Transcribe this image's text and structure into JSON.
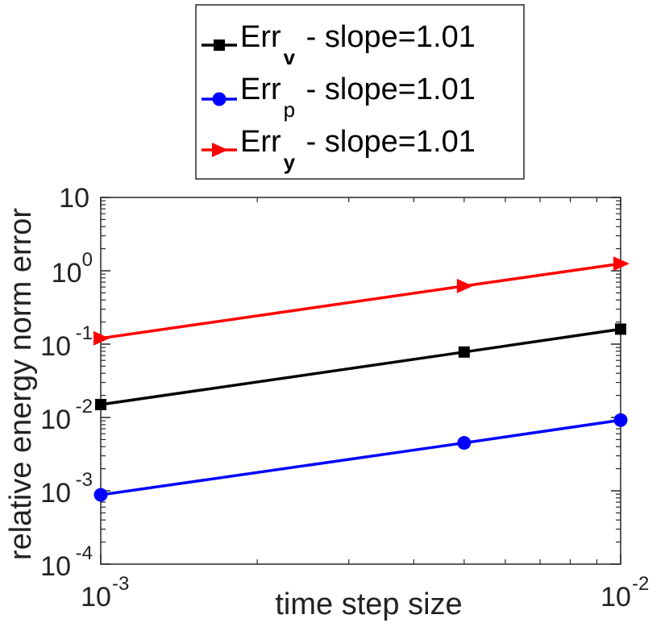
{
  "chart_data": {
    "type": "line",
    "xscale": "log",
    "yscale": "log",
    "xlabel": "time step size",
    "ylabel": "relative energy norm error",
    "xlim": [
      0.001,
      0.01
    ],
    "ylim": [
      0.0001,
      10
    ],
    "xticks": [
      {
        "value": 0.001,
        "base": "10",
        "exp": "-3"
      },
      {
        "value": 0.01,
        "base": "10",
        "exp": "-2"
      }
    ],
    "yticks": [
      {
        "value": 10,
        "base": "10",
        "exp": ""
      },
      {
        "value": 1,
        "base": "10",
        "exp": "0"
      },
      {
        "value": 0.1,
        "base": "10",
        "exp": "-1"
      },
      {
        "value": 0.01,
        "base": "10",
        "exp": "-2"
      },
      {
        "value": 0.001,
        "base": "10",
        "exp": "-3"
      },
      {
        "value": 0.0001,
        "base": "10",
        "exp": "-4"
      }
    ],
    "series": [
      {
        "name": "Err",
        "subscript": "v",
        "label_suffix": " - slope=1.01",
        "bold_sub": true,
        "color": "#000000",
        "marker": "square",
        "x": [
          0.001,
          0.005,
          0.01
        ],
        "y": [
          0.015,
          0.078,
          0.16
        ]
      },
      {
        "name": "Err",
        "subscript": "p",
        "label_suffix": " - slope=1.01",
        "bold_sub": false,
        "color": "#0000ff",
        "marker": "circle",
        "x": [
          0.001,
          0.005,
          0.01
        ],
        "y": [
          0.00088,
          0.0045,
          0.0092
        ]
      },
      {
        "name": "Err",
        "subscript": "y",
        "label_suffix": " - slope=1.01",
        "bold_sub": true,
        "color": "#ff0000",
        "marker": "triangle-right",
        "x": [
          0.001,
          0.005,
          0.01
        ],
        "y": [
          0.12,
          0.62,
          1.25
        ]
      }
    ],
    "legend": "top-center",
    "grid": false
  }
}
